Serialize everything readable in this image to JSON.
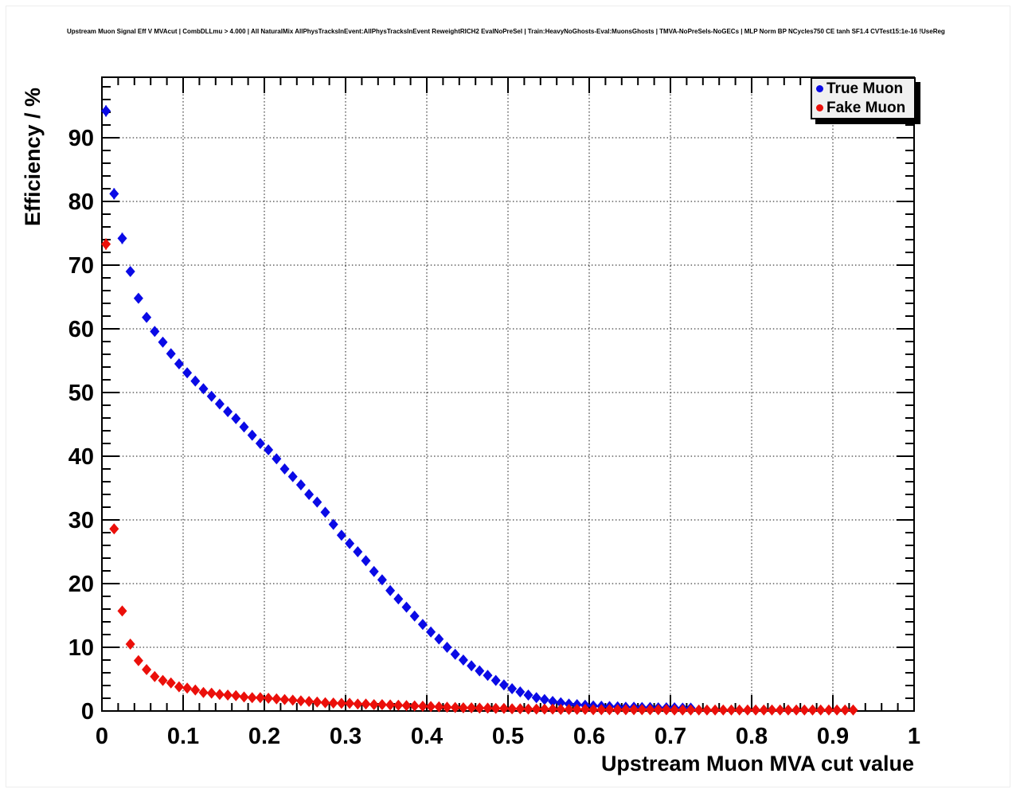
{
  "title": "Upstream Muon Signal Eff V MVAcut | CombDLLmu > 4.000 | All NaturalMix AllPhysTracksInEvent:AllPhysTracksInEvent ReweightRICH2 EvalNoPreSel | Train:HeavyNoGhosts-Eval:MuonsGhosts | TMVA-NoPreSels-NoGECs | MLP Norm BP NCycles750 CE tanh SF1.4 CVTest15:1e-16 !UseReg",
  "chart_data": {
    "type": "scatter",
    "title": "Upstream Muon Signal Eff V MVAcut | CombDLLmu > 4.000 | All NaturalMix AllPhysTracksInEvent:AllPhysTracksInEvent ReweightRICH2 EvalNoPreSel | Train:HeavyNoGhosts-Eval:MuonsGhosts | TMVA-NoPreSels-NoGECs | MLP Norm BP NCycles750 CE tanh SF1.4 CVTest15:1e-16 !UseReg",
    "xlabel": "Upstream Muon MVA cut value",
    "ylabel": "Efficiency / %",
    "xlim": [
      0,
      1
    ],
    "ylim": [
      0,
      99.5
    ],
    "grid": "dotted, at major ticks, both axes",
    "legend_position": "top-right",
    "x_ticks": [
      [
        0,
        "0"
      ],
      [
        0.1,
        "0.1"
      ],
      [
        0.2,
        "0.2"
      ],
      [
        0.3,
        "0.3"
      ],
      [
        0.4,
        "0.4"
      ],
      [
        0.5,
        "0.5"
      ],
      [
        0.6,
        "0.6"
      ],
      [
        0.7,
        "0.7"
      ],
      [
        0.8,
        "0.8"
      ],
      [
        0.9,
        "0.9"
      ],
      [
        1,
        "1"
      ]
    ],
    "y_ticks": [
      [
        0,
        "0"
      ],
      [
        10,
        "10"
      ],
      [
        20,
        "20"
      ],
      [
        30,
        "30"
      ],
      [
        40,
        "40"
      ],
      [
        50,
        "50"
      ],
      [
        60,
        "60"
      ],
      [
        70,
        "70"
      ],
      [
        80,
        "80"
      ],
      [
        90,
        "90"
      ]
    ],
    "x_minor_step": 0.02,
    "y_minor_step": 2,
    "x_start": 0.005,
    "x_step": 0.01,
    "series": [
      {
        "name": "True Muon",
        "color": "#0a0ae6",
        "marker": "diamond",
        "values": [
          94.2,
          81.2,
          74.2,
          69.0,
          64.8,
          61.8,
          59.6,
          57.9,
          56.1,
          54.5,
          53.1,
          51.8,
          50.6,
          49.4,
          48.2,
          47.0,
          45.9,
          44.6,
          43.3,
          42.0,
          41.0,
          39.6,
          38.0,
          36.8,
          35.5,
          34.0,
          32.8,
          31.2,
          29.3,
          27.6,
          26.3,
          25.0,
          23.6,
          21.9,
          20.6,
          18.9,
          17.6,
          16.3,
          14.9,
          13.6,
          12.4,
          11.3,
          10.0,
          8.9,
          8.0,
          7.1,
          6.3,
          5.6,
          4.8,
          4.1,
          3.5,
          3.0,
          2.5,
          2.1,
          1.8,
          1.5,
          1.3,
          1.1,
          1.0,
          0.9,
          0.8,
          0.75,
          0.7,
          0.65,
          0.6,
          0.6,
          0.55,
          0.55,
          0.5,
          0.5,
          0.5,
          0.45,
          0.45
        ]
      },
      {
        "name": "Fake Muon",
        "color": "#eb0f0a",
        "marker": "diamond",
        "values": [
          73.3,
          28.6,
          15.7,
          10.5,
          7.9,
          6.5,
          5.4,
          4.8,
          4.4,
          3.8,
          3.6,
          3.3,
          2.9,
          2.8,
          2.6,
          2.5,
          2.4,
          2.2,
          2.1,
          2.1,
          2.0,
          1.9,
          1.8,
          1.7,
          1.6,
          1.5,
          1.4,
          1.3,
          1.25,
          1.2,
          1.2,
          1.1,
          1.1,
          1.0,
          1.0,
          0.95,
          0.9,
          0.85,
          0.8,
          0.75,
          0.7,
          0.65,
          0.6,
          0.55,
          0.5,
          0.5,
          0.45,
          0.45,
          0.4,
          0.4,
          0.35,
          0.35,
          0.3,
          0.3,
          0.3,
          0.3,
          0.25,
          0.25,
          0.25,
          0.25,
          0.2,
          0.2,
          0.2,
          0.2,
          0.2,
          0.2,
          0.2,
          0.2,
          0.2,
          0.2,
          0.15,
          0.15,
          0.15,
          0.15,
          0.15,
          0.15,
          0.15,
          0.15,
          0.15,
          0.15,
          0.15,
          0.15,
          0.15,
          0.15,
          0.15,
          0.15,
          0.15,
          0.15,
          0.15,
          0.15,
          0.15,
          0.15,
          0.15
        ]
      }
    ]
  },
  "colors": {
    "background": "#ffffff",
    "frame": "#000000",
    "grid": "#111111",
    "legend_background": "#f0f0f0",
    "true_muon": "#0a0ae6",
    "fake_muon": "#eb0f0a"
  }
}
